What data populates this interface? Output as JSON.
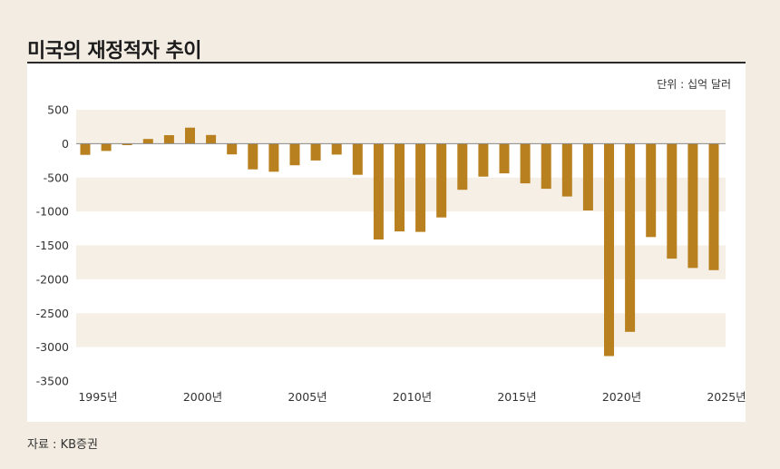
{
  "header": {
    "title": "미국의 재정적자 추이",
    "unit": "단위 : 십억 달러"
  },
  "footer": {
    "source": "자료 : KB증권"
  },
  "colors": {
    "bar": "#b8801e",
    "band": "#f5efe6",
    "zero_line": "#888888"
  },
  "chart_data": {
    "type": "bar",
    "title": "미국의 재정적자 추이",
    "unit_label": "단위 : 십억 달러",
    "xlabel": "",
    "ylabel": "",
    "ylim": [
      -3500,
      500
    ],
    "yticks": [
      500,
      0,
      -500,
      -1000,
      -1500,
      -2000,
      -2500,
      -3000,
      -3500
    ],
    "ytick_labels": [
      "500",
      "0",
      "-500",
      "-1000",
      "-1500",
      "-2000",
      "-2500",
      "-3000",
      "-3500"
    ],
    "xtick_labels": [
      {
        "year": 1995,
        "label": "1995년"
      },
      {
        "year": 2000,
        "label": "2000년"
      },
      {
        "year": 2005,
        "label": "2005년"
      },
      {
        "year": 2010,
        "label": "2010년"
      },
      {
        "year": 2015,
        "label": "2015년"
      },
      {
        "year": 2020,
        "label": "2020년"
      },
      {
        "year": 2025,
        "label": "2025년"
      }
    ],
    "categories": [
      1995,
      1996,
      1997,
      1998,
      1999,
      2000,
      2001,
      2002,
      2003,
      2004,
      2005,
      2006,
      2007,
      2008,
      2009,
      2010,
      2011,
      2012,
      2013,
      2014,
      2015,
      2016,
      2017,
      2018,
      2019,
      2020,
      2021,
      2022,
      2023,
      2024,
      2025
    ],
    "values": [
      -164,
      -107,
      -22,
      69,
      126,
      236,
      128,
      -158,
      -378,
      -413,
      -318,
      -248,
      -161,
      -459,
      -1413,
      -1294,
      -1300,
      -1087,
      -680,
      -485,
      -438,
      -585,
      -665,
      -779,
      -984,
      -3132,
      -2775,
      -1376,
      -1695,
      -1833,
      -1865
    ],
    "grid": "alternating horizontal bands"
  }
}
